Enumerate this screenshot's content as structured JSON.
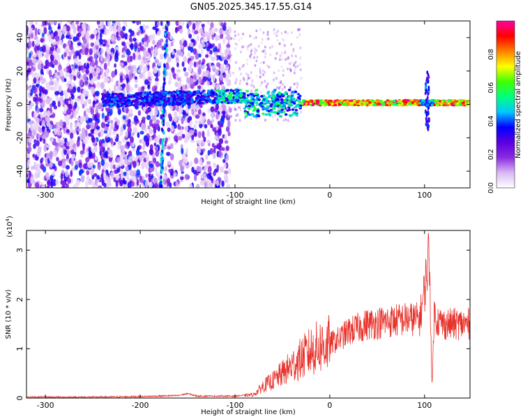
{
  "title": "GN05.2025.345.17.55.G14",
  "chart_data": [
    {
      "type": "heatmap",
      "xlabel": "Height of straight line (km)",
      "ylabel": "Frequency (Hz)",
      "xlim": [
        -320,
        148
      ],
      "ylim": [
        -50,
        50
      ],
      "xticks": [
        -300,
        -200,
        -100,
        0,
        100
      ],
      "yticks": [
        -40,
        -20,
        0,
        20,
        40
      ],
      "colorbar": {
        "label": "Normalized spectral amplitude",
        "range": [
          0,
          1
        ],
        "ticks": [
          0.0,
          0.2,
          0.4,
          0.6,
          0.8
        ],
        "tick_labels": [
          "0.0",
          "0.2",
          "0.4",
          "0.6",
          "0.8"
        ],
        "colors": [
          "#ffffff",
          "#d9b8f5",
          "#8a2be2",
          "#5a00e0",
          "#0000ff",
          "#00c8ff",
          "#00ff80",
          "#40ff00",
          "#ffff00",
          "#ff8000",
          "#ff0000",
          "#ff00a0"
        ]
      },
      "features": [
        {
          "description_x_range": [
            -320,
            -110
          ],
          "kind": "broadband noise",
          "level": 0.15
        },
        {
          "description_x_range": [
            -240,
            -30
          ],
          "kind": "signal band near 5 Hz",
          "level": 0.45
        },
        {
          "description_x_range": [
            -30,
            148
          ],
          "kind": "strong carrier near 0 Hz",
          "level": 0.85
        }
      ]
    },
    {
      "type": "line",
      "xlabel": "Height of straight line (km)",
      "ylabel": "SNR (10 * v/v)",
      "y_multiplier": "(x10",
      "y_multiplier_exp": "4",
      "xlim": [
        -320,
        148
      ],
      "ylim": [
        0,
        3.4
      ],
      "xticks": [
        -300,
        -200,
        -100,
        0,
        100
      ],
      "yticks": [
        0,
        1,
        2,
        3
      ],
      "color": "#e8312a",
      "x": [
        -320,
        -250,
        -200,
        -160,
        -150,
        -140,
        -100,
        -80,
        -70,
        -60,
        -50,
        -40,
        -30,
        -20,
        -10,
        0,
        10,
        20,
        40,
        60,
        80,
        95,
        100,
        105,
        108,
        110,
        115,
        120,
        130,
        148
      ],
      "values": [
        0.02,
        0.02,
        0.03,
        0.05,
        0.09,
        0.04,
        0.04,
        0.07,
        0.25,
        0.35,
        0.5,
        0.65,
        0.8,
        0.95,
        1.05,
        1.1,
        1.2,
        1.35,
        1.5,
        1.55,
        1.6,
        1.6,
        2.2,
        3.0,
        0.15,
        1.7,
        1.55,
        1.5,
        1.5,
        1.5
      ]
    }
  ]
}
